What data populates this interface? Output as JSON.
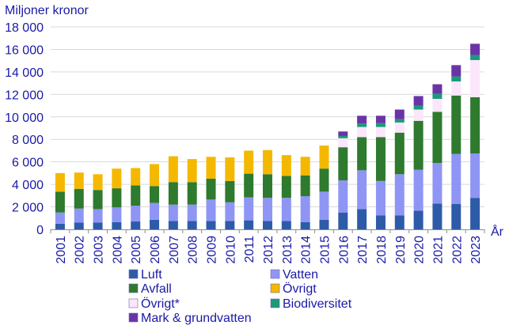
{
  "chart_data": {
    "type": "bar",
    "stacked": true,
    "ylabel": "Miljoner kronor",
    "xlabel": "År",
    "ylim": [
      0,
      18000
    ],
    "yticks": [
      0,
      2000,
      4000,
      6000,
      8000,
      10000,
      12000,
      14000,
      16000,
      18000
    ],
    "ytick_labels": [
      "0",
      "2 000",
      "4 000",
      "6 000",
      "8 000",
      "10 000",
      "12 000",
      "14 000",
      "16 000",
      "18 000"
    ],
    "categories": [
      "2001",
      "2002",
      "2003",
      "2004",
      "2005",
      "2006",
      "2007",
      "2008",
      "2009",
      "2010",
      "2011",
      "2012",
      "2013",
      "2014",
      "2015",
      "2016",
      "2017",
      "2018",
      "2019",
      "2020",
      "2021",
      "2022",
      "2023"
    ],
    "series": [
      {
        "name": "Luft",
        "color": "#2e5ba8",
        "values": [
          500,
          600,
          600,
          650,
          700,
          850,
          750,
          750,
          750,
          750,
          800,
          750,
          750,
          650,
          850,
          1500,
          1800,
          1250,
          1250,
          1650,
          2300,
          2250,
          2800
        ]
      },
      {
        "name": "Vatten",
        "color": "#8f95f5",
        "values": [
          1000,
          1250,
          1200,
          1300,
          1400,
          1500,
          1450,
          1450,
          1900,
          1650,
          2050,
          2050,
          2050,
          2300,
          2500,
          2850,
          3450,
          3050,
          3650,
          3650,
          3600,
          4450,
          3950
        ]
      },
      {
        "name": "Avfall",
        "color": "#2e7a2e",
        "values": [
          1850,
          1750,
          1700,
          1700,
          1800,
          1500,
          2000,
          2000,
          1850,
          1900,
          2100,
          2100,
          1950,
          1850,
          2050,
          2950,
          2950,
          3900,
          3700,
          4350,
          4550,
          5200,
          5000
        ]
      },
      {
        "name": "Övrigt",
        "color": "#f5b800",
        "values": [
          1650,
          1450,
          1400,
          1750,
          1550,
          1950,
          2300,
          2050,
          1950,
          2100,
          2050,
          2150,
          1850,
          1650,
          2050,
          0,
          0,
          0,
          0,
          0,
          0,
          0,
          0
        ]
      },
      {
        "name": "Övrigt*",
        "color": "#fbe6fb",
        "values": [
          0,
          0,
          0,
          0,
          0,
          0,
          0,
          0,
          0,
          0,
          0,
          0,
          0,
          0,
          0,
          800,
          900,
          900,
          900,
          1000,
          1150,
          1250,
          3300
        ]
      },
      {
        "name": "Biodiversitet",
        "color": "#1a9a7a",
        "values": [
          0,
          0,
          0,
          0,
          0,
          0,
          0,
          0,
          0,
          0,
          0,
          0,
          0,
          0,
          0,
          200,
          300,
          350,
          300,
          350,
          450,
          450,
          450
        ]
      },
      {
        "name": "Mark & grundvatten",
        "color": "#6b33a8",
        "values": [
          0,
          0,
          0,
          0,
          0,
          0,
          0,
          0,
          0,
          0,
          0,
          0,
          0,
          0,
          0,
          400,
          700,
          650,
          850,
          850,
          850,
          1000,
          1000
        ]
      }
    ],
    "legend_position": "bottom"
  },
  "colors": {
    "text": "#1a1aa6",
    "gridline": "#d9d9d9",
    "axis": "#8c8c8c"
  }
}
